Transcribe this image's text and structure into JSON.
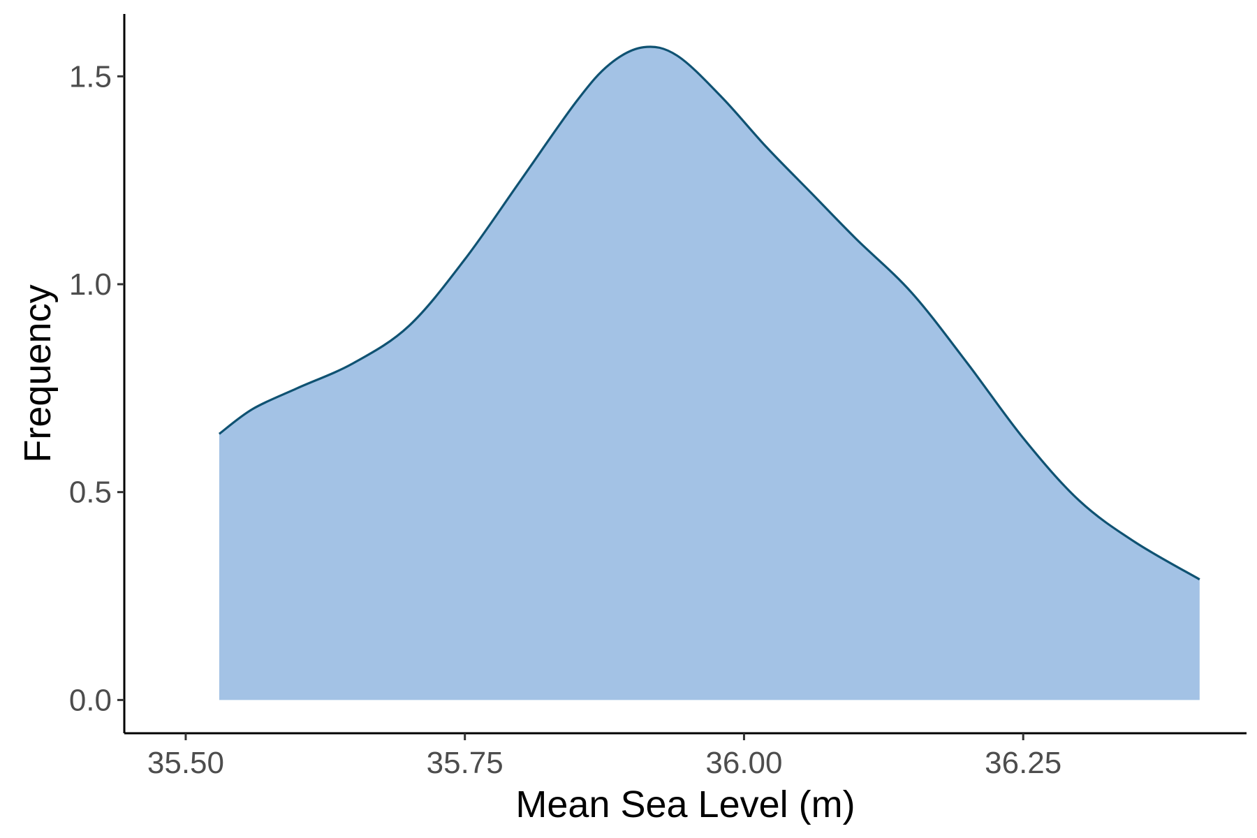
{
  "chart_data": {
    "type": "area",
    "title": "",
    "xlabel": "Mean Sea Level (m)",
    "ylabel": "Frequency",
    "xlim": [
      35.445,
      36.45
    ],
    "ylim": [
      -0.08,
      1.65
    ],
    "x_ticks": [
      35.5,
      35.75,
      36.0,
      36.25
    ],
    "x_tick_labels": [
      "35.50",
      "35.75",
      "36.00",
      "36.25"
    ],
    "y_ticks": [
      0.0,
      0.5,
      1.0,
      1.5
    ],
    "y_tick_labels": [
      "0.0",
      "0.5",
      "1.0",
      "1.5"
    ],
    "grid": false,
    "legend": "none",
    "colors": {
      "fill": "#a3c2e5",
      "line": "#0f5272",
      "axis": "#000000",
      "tick_text": "#4d4d4d"
    },
    "series": [
      {
        "x": [
          35.53,
          35.56,
          35.6,
          35.65,
          35.7,
          35.75,
          35.8,
          35.85,
          35.88,
          35.91,
          35.94,
          35.98,
          36.02,
          36.06,
          36.1,
          36.15,
          36.2,
          36.25,
          36.3,
          36.35,
          36.408
        ],
        "y": [
          0.64,
          0.7,
          0.75,
          0.81,
          0.9,
          1.06,
          1.25,
          1.44,
          1.53,
          1.57,
          1.55,
          1.45,
          1.33,
          1.22,
          1.11,
          0.98,
          0.81,
          0.63,
          0.48,
          0.38,
          0.29
        ]
      }
    ]
  }
}
